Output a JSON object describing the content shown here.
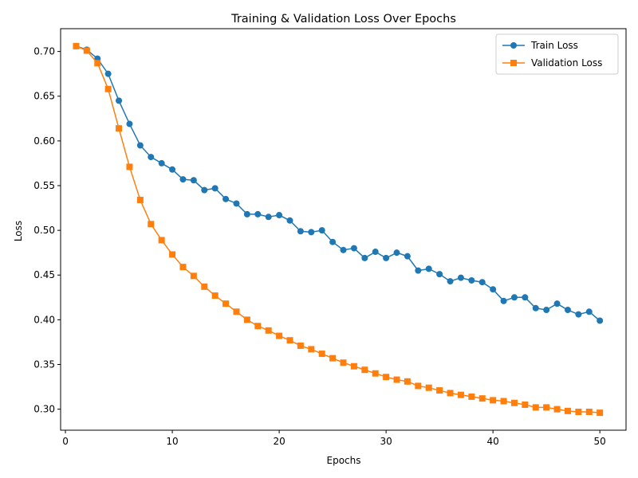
{
  "chart_data": {
    "type": "line",
    "title": "Training & Validation Loss Over Epochs",
    "xlabel": "Epochs",
    "ylabel": "Loss",
    "xlim": [
      -0.45,
      52.45
    ],
    "ylim": [
      0.2765,
      0.7255
    ],
    "xticks": [
      0,
      10,
      20,
      30,
      40,
      50
    ],
    "xtick_labels": [
      "0",
      "10",
      "20",
      "30",
      "40",
      "50"
    ],
    "yticks": [
      0.3,
      0.35,
      0.4,
      0.45,
      0.5,
      0.55,
      0.6,
      0.65,
      0.7
    ],
    "ytick_labels": [
      "0.30",
      "0.35",
      "0.40",
      "0.45",
      "0.50",
      "0.55",
      "0.60",
      "0.65",
      "0.70"
    ],
    "grid": false,
    "legend_position": "top-right",
    "x": [
      1,
      2,
      3,
      4,
      5,
      6,
      7,
      8,
      9,
      10,
      11,
      12,
      13,
      14,
      15,
      16,
      17,
      18,
      19,
      20,
      21,
      22,
      23,
      24,
      25,
      26,
      27,
      28,
      29,
      30,
      31,
      32,
      33,
      34,
      35,
      36,
      37,
      38,
      39,
      40,
      41,
      42,
      43,
      44,
      45,
      46,
      47,
      48,
      49,
      50
    ],
    "series": [
      {
        "name": "Train Loss",
        "color": "#1f77b4",
        "marker": "circle",
        "values": [
          0.706,
          0.702,
          0.692,
          0.675,
          0.645,
          0.619,
          0.595,
          0.582,
          0.575,
          0.568,
          0.557,
          0.556,
          0.545,
          0.547,
          0.535,
          0.53,
          0.518,
          0.518,
          0.515,
          0.517,
          0.511,
          0.499,
          0.498,
          0.5,
          0.487,
          0.478,
          0.48,
          0.469,
          0.476,
          0.469,
          0.475,
          0.471,
          0.455,
          0.457,
          0.451,
          0.443,
          0.447,
          0.444,
          0.442,
          0.434,
          0.421,
          0.425,
          0.425,
          0.413,
          0.411,
          0.418,
          0.411,
          0.406,
          0.409,
          0.399
        ]
      },
      {
        "name": "Validation Loss",
        "color": "#ff7f0e",
        "marker": "square",
        "values": [
          0.706,
          0.701,
          0.687,
          0.658,
          0.614,
          0.571,
          0.534,
          0.507,
          0.489,
          0.473,
          0.459,
          0.449,
          0.437,
          0.427,
          0.418,
          0.409,
          0.4,
          0.393,
          0.388,
          0.382,
          0.377,
          0.371,
          0.367,
          0.362,
          0.357,
          0.352,
          0.348,
          0.344,
          0.34,
          0.336,
          0.333,
          0.331,
          0.326,
          0.324,
          0.321,
          0.318,
          0.316,
          0.314,
          0.312,
          0.31,
          0.309,
          0.307,
          0.305,
          0.302,
          0.302,
          0.3,
          0.298,
          0.297,
          0.297,
          0.296
        ]
      }
    ]
  }
}
